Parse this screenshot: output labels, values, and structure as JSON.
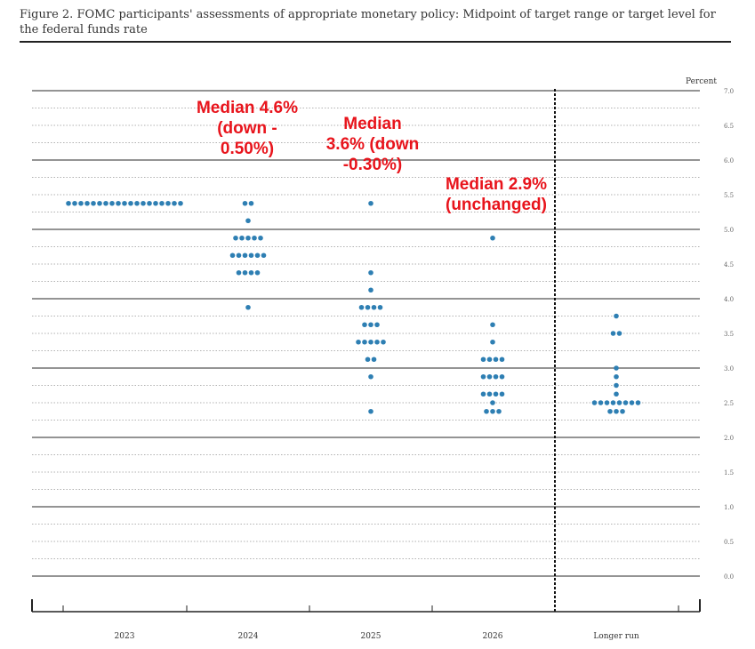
{
  "figure": {
    "caption": "Figure 2.  FOMC participants' assessments of appropriate monetary policy: Midpoint of target range or target level for the federal funds rate"
  },
  "chart_data": {
    "type": "scatter",
    "ylabel": "Percent",
    "ylim": [
      0.0,
      7.0
    ],
    "y_ticks": [
      "0.0",
      "0.5",
      "1.0",
      "1.5",
      "2.0",
      "2.5",
      "3.0",
      "3.5",
      "4.0",
      "4.5",
      "5.0",
      "5.5",
      "6.0",
      "6.5",
      "7.0"
    ],
    "categories": [
      "2023",
      "2024",
      "2025",
      "2026",
      "Longer run"
    ],
    "grid": true,
    "point_color": "#2e7fb3",
    "dots": [
      {
        "category": "2023",
        "y": 5.375,
        "count": 19
      },
      {
        "category": "2024",
        "y": 5.375,
        "count": 2
      },
      {
        "category": "2024",
        "y": 5.125,
        "count": 1
      },
      {
        "category": "2024",
        "y": 4.875,
        "count": 5
      },
      {
        "category": "2024",
        "y": 4.625,
        "count": 6
      },
      {
        "category": "2024",
        "y": 4.375,
        "count": 4
      },
      {
        "category": "2024",
        "y": 3.875,
        "count": 1
      },
      {
        "category": "2025",
        "y": 5.375,
        "count": 1
      },
      {
        "category": "2025",
        "y": 4.375,
        "count": 1
      },
      {
        "category": "2025",
        "y": 4.125,
        "count": 1
      },
      {
        "category": "2025",
        "y": 3.875,
        "count": 4
      },
      {
        "category": "2025",
        "y": 3.625,
        "count": 3
      },
      {
        "category": "2025",
        "y": 3.375,
        "count": 5
      },
      {
        "category": "2025",
        "y": 3.125,
        "count": 2
      },
      {
        "category": "2025",
        "y": 2.875,
        "count": 1
      },
      {
        "category": "2025",
        "y": 2.375,
        "count": 1
      },
      {
        "category": "2026",
        "y": 4.875,
        "count": 1
      },
      {
        "category": "2026",
        "y": 3.625,
        "count": 1
      },
      {
        "category": "2026",
        "y": 3.375,
        "count": 1
      },
      {
        "category": "2026",
        "y": 3.125,
        "count": 4
      },
      {
        "category": "2026",
        "y": 2.875,
        "count": 4
      },
      {
        "category": "2026",
        "y": 2.625,
        "count": 4
      },
      {
        "category": "2026",
        "y": 2.5,
        "count": 1
      },
      {
        "category": "2026",
        "y": 2.375,
        "count": 3
      },
      {
        "category": "Longer run",
        "y": 3.75,
        "count": 1
      },
      {
        "category": "Longer run",
        "y": 3.5,
        "count": 2
      },
      {
        "category": "Longer run",
        "y": 3.0,
        "count": 1
      },
      {
        "category": "Longer run",
        "y": 2.875,
        "count": 1
      },
      {
        "category": "Longer run",
        "y": 2.75,
        "count": 1
      },
      {
        "category": "Longer run",
        "y": 2.625,
        "count": 1
      },
      {
        "category": "Longer run",
        "y": 2.5,
        "count": 8
      },
      {
        "category": "Longer run",
        "y": 2.375,
        "count": 3
      }
    ],
    "annotations": [
      {
        "text": "Median 4.6%\n(down -\n0.50%)",
        "color": "#e8141c"
      },
      {
        "text": "Median\n3.6% (down\n-0.30%)",
        "color": "#e8141c"
      },
      {
        "text": "Median 2.9%\n(unchanged)",
        "color": "#e8141c"
      }
    ]
  }
}
